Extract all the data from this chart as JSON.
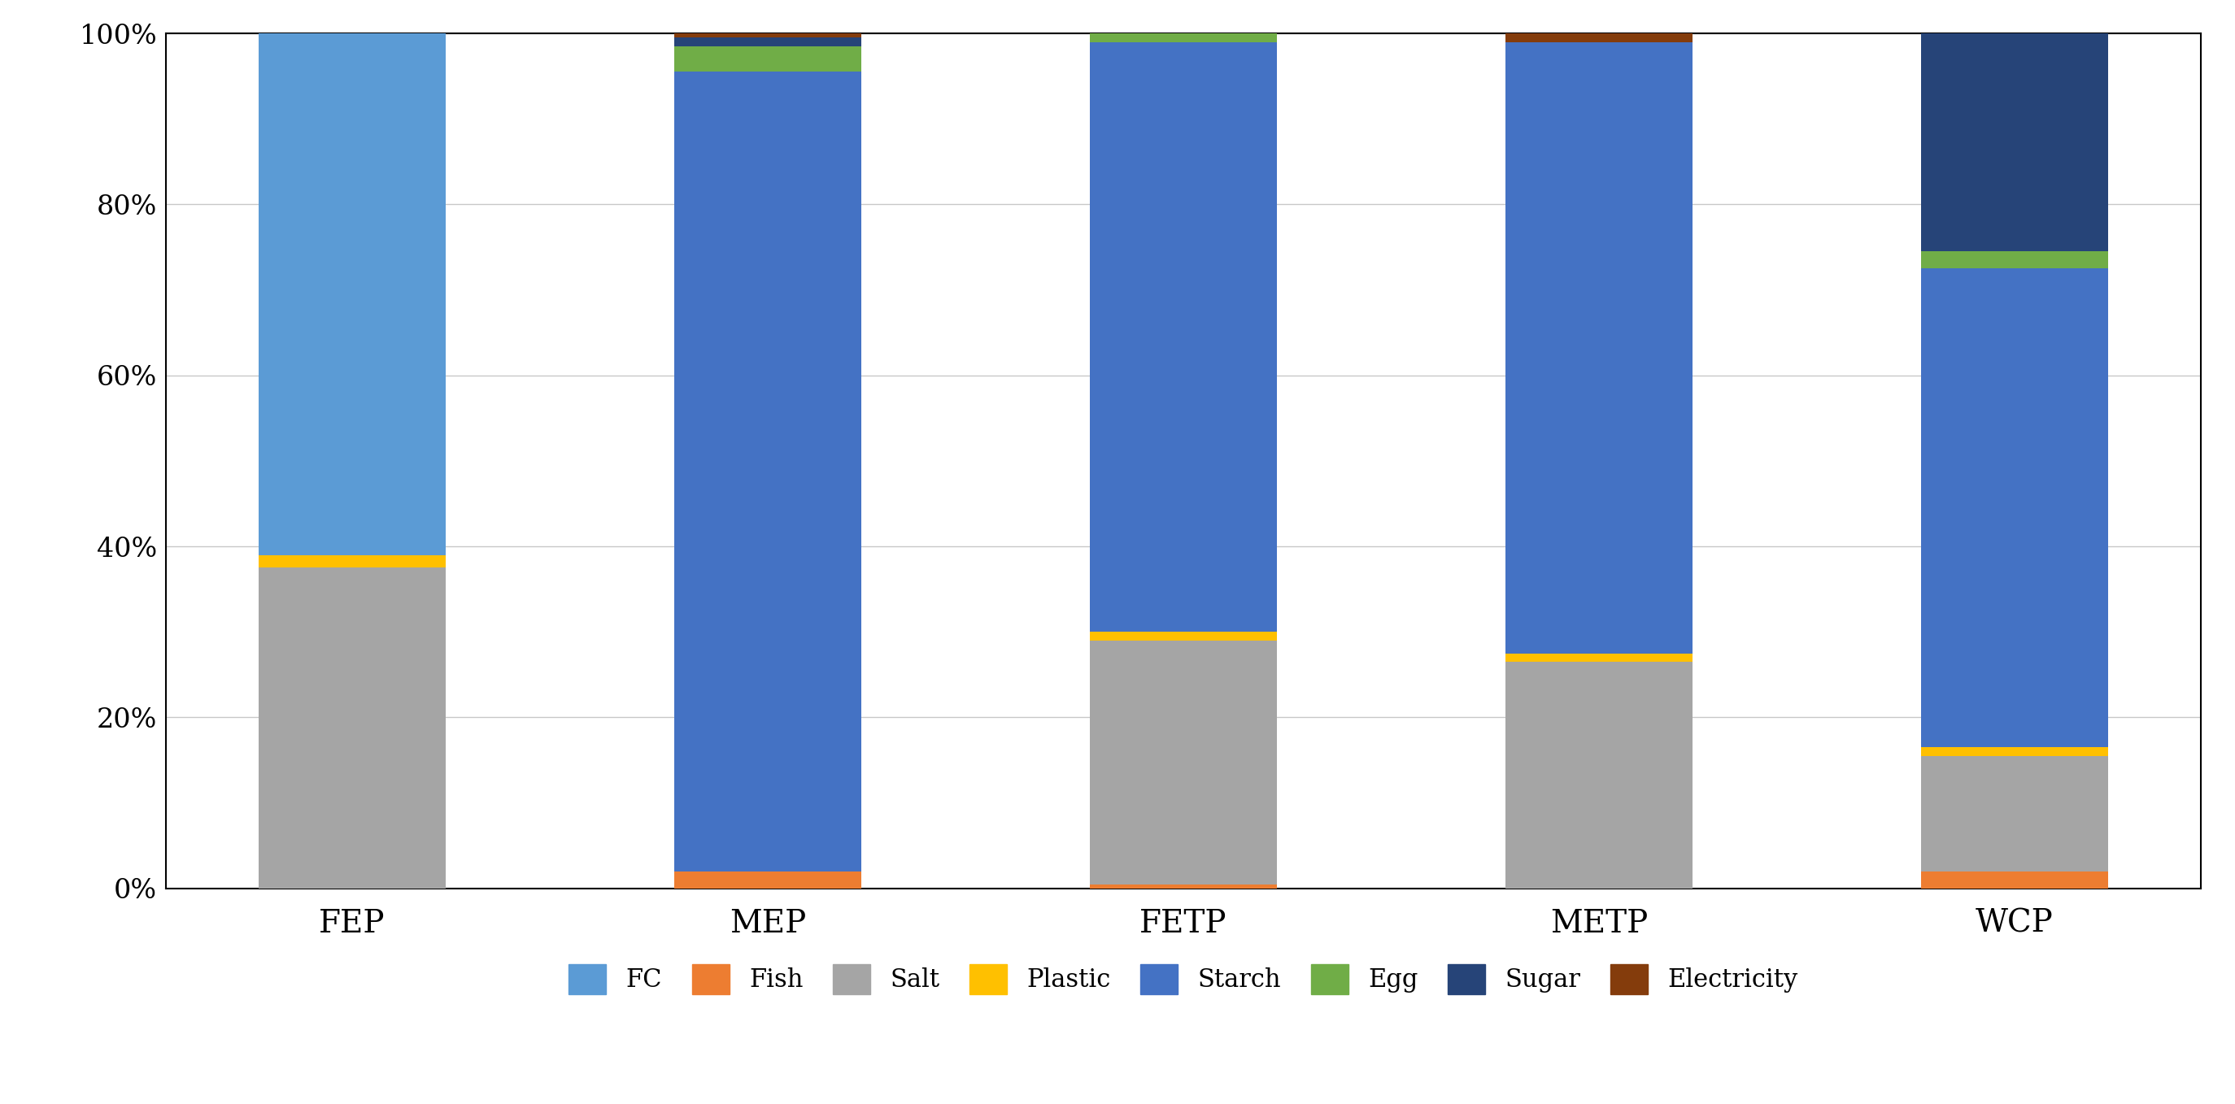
{
  "categories": [
    "FEP",
    "MEP",
    "FETP",
    "METP",
    "WCP"
  ],
  "series": {
    "Fish": [
      0.0,
      2.0,
      0.5,
      0.0,
      2.0
    ],
    "Salt": [
      37.5,
      0.0,
      28.5,
      26.5,
      13.5
    ],
    "Plastic": [
      1.5,
      0.0,
      1.0,
      1.0,
      1.0
    ],
    "FC": [
      61.0,
      0.0,
      0.0,
      0.0,
      0.0
    ],
    "Starch": [
      0.0,
      93.5,
      69.0,
      71.5,
      56.0
    ],
    "Egg": [
      0.0,
      3.0,
      1.0,
      0.0,
      2.0
    ],
    "Sugar": [
      0.0,
      1.0,
      0.0,
      0.0,
      26.0
    ],
    "Electricity": [
      0.0,
      0.5,
      0.0,
      1.0,
      0.5
    ]
  },
  "legend_order": [
    "FC",
    "Fish",
    "Salt",
    "Plastic",
    "Starch",
    "Egg",
    "Sugar",
    "Electricity"
  ],
  "stack_order": [
    "Fish",
    "Salt",
    "Plastic",
    "FC",
    "Starch",
    "Egg",
    "Sugar",
    "Electricity"
  ],
  "colors": {
    "FC": "#5B9BD5",
    "Fish": "#ED7D31",
    "Salt": "#A5A5A5",
    "Plastic": "#FFC000",
    "Starch": "#4472C4",
    "Egg": "#70AD47",
    "Sugar": "#264478",
    "Electricity": "#843C0C"
  },
  "ylim": [
    0,
    100
  ],
  "yticks": [
    0,
    20,
    40,
    60,
    80,
    100
  ],
  "ytick_labels": [
    "0%",
    "20%",
    "40%",
    "60%",
    "80%",
    "100%"
  ],
  "background_color": "#FFFFFF",
  "bar_width": 0.45,
  "legend_fontsize": 22,
  "tick_fontsize": 24,
  "xlabel_fontsize": 28,
  "grid_color": "#C8C8C8"
}
